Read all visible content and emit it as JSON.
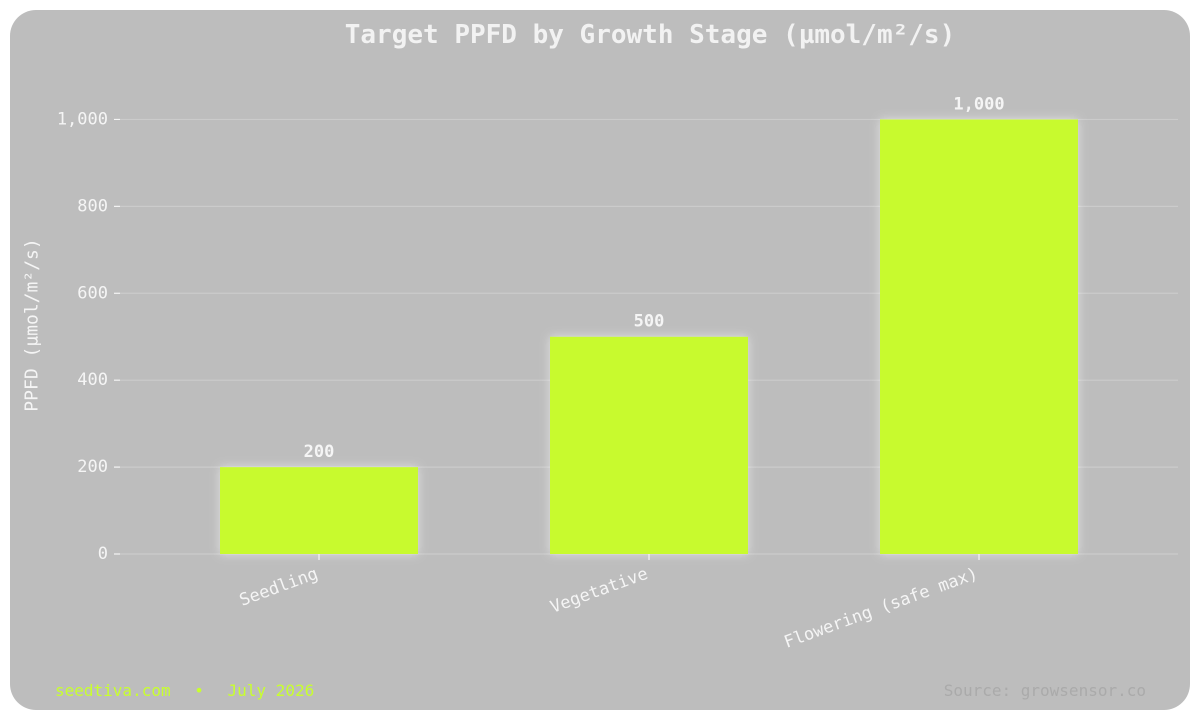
{
  "footer": {
    "site": "seedtiva.com",
    "separator": "•",
    "date": "July 2026",
    "source": "Source: growsensor.co"
  },
  "colors": {
    "background": "#bdbdbd",
    "bar": "#c8fa2e",
    "text": "#f5f5f5",
    "grid": "#cbcbcb"
  },
  "chart_data": {
    "type": "bar",
    "title": "Target PPFD by Growth Stage (µmol/m²/s)",
    "xlabel": "",
    "ylabel": "PPFD (µmol/m²/s)",
    "categories": [
      "Seedling",
      "Vegetative",
      "Flowering (safe max)"
    ],
    "values": [
      200,
      500,
      1000
    ],
    "data_labels": [
      "200",
      "500",
      "1,000"
    ],
    "yticks": [
      0,
      200,
      400,
      600,
      800,
      1000
    ],
    "ytick_labels": [
      "0",
      "200",
      "400",
      "600",
      "800",
      "1,000"
    ],
    "ylim": [
      0,
      1100
    ],
    "grid": true,
    "legend": "none"
  }
}
